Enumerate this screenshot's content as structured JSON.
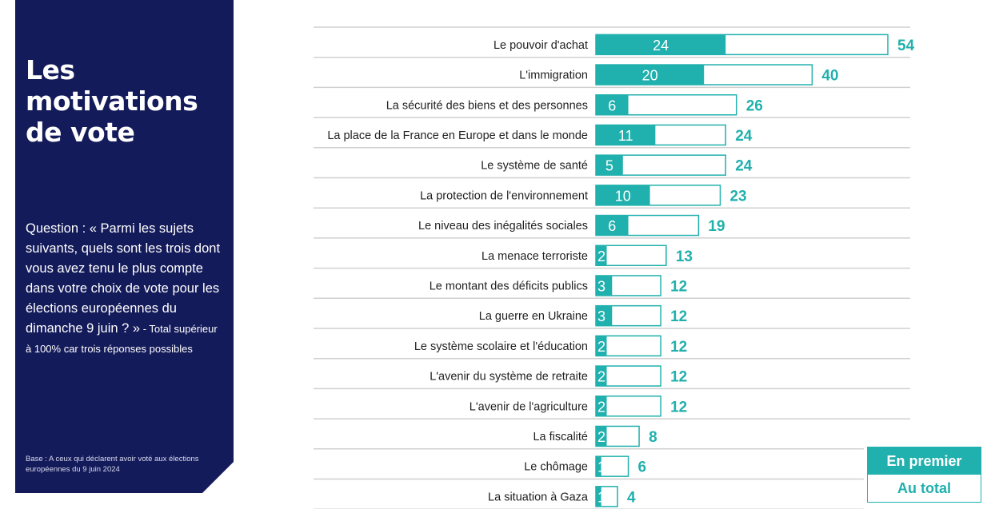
{
  "panel": {
    "title": "Les motivations de vote",
    "question": "Question : « Parmi les sujets suivants, quels sont les trois dont vous avez tenu le plus compte dans votre choix de vote pour les élections européennes du dimanche 9 juin ? »",
    "note": " - Total supérieur à 100% car trois réponses possibles",
    "base": "Base : A ceux qui déclarent avoir voté aux élections européennes du 9 juin  2024"
  },
  "legend": {
    "first_label": "En premier",
    "total_label": "Au total"
  },
  "colors": {
    "accent": "#20b0ad",
    "panel_bg": "#141b5a",
    "grid": "#d0d0d0"
  },
  "chart_data": {
    "type": "bar",
    "orientation": "horizontal",
    "title": "Les motivations de vote",
    "xlabel": "",
    "ylabel": "",
    "unit": "%",
    "xlim": [
      0,
      54
    ],
    "grid": false,
    "legend_position": "bottom-right",
    "categories": [
      "Le pouvoir d'achat",
      "L'immigration",
      "La sécurité des biens et des personnes",
      "La place de la France en Europe et dans le monde",
      "Le système de santé",
      "La protection de l'environnement",
      "Le niveau des inégalités sociales",
      "La menace terroriste",
      "Le montant des déficits publics",
      "La guerre en Ukraine",
      "Le système scolaire et l'éducation",
      "L'avenir du système de retraite",
      "L'avenir de l'agriculture",
      "La fiscalité",
      "Le chômage",
      "La situation à Gaza"
    ],
    "series": [
      {
        "name": "En premier",
        "values": [
          24,
          20,
          6,
          11,
          5,
          10,
          6,
          2,
          3,
          3,
          2,
          2,
          2,
          2,
          1,
          1
        ]
      },
      {
        "name": "Au total",
        "values": [
          54,
          40,
          26,
          24,
          24,
          23,
          19,
          13,
          12,
          12,
          12,
          12,
          12,
          8,
          6,
          4
        ]
      }
    ]
  }
}
